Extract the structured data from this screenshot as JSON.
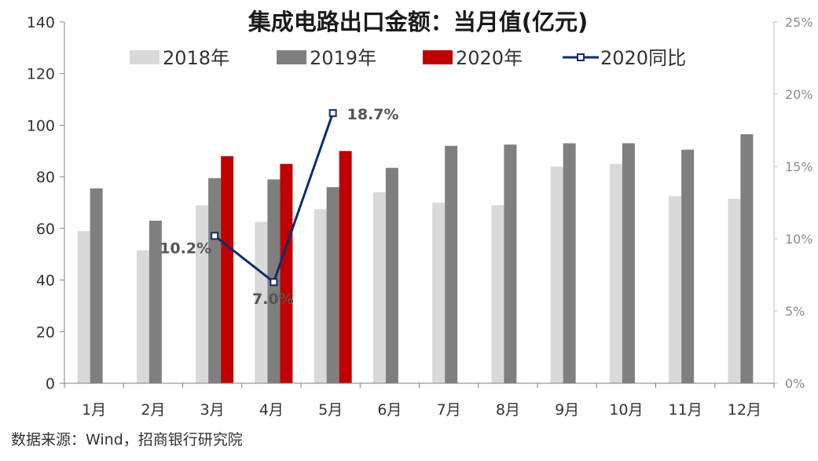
{
  "chart_data": {
    "type": "bar",
    "title": "集成电路出口金额：当月值(亿元)",
    "categories": [
      "1月",
      "2月",
      "3月",
      "4月",
      "5月",
      "6月",
      "7月",
      "8月",
      "9月",
      "10月",
      "11月",
      "12月"
    ],
    "series": [
      {
        "name": "2018年",
        "values": [
          59,
          51.5,
          69,
          62.5,
          67.5,
          74,
          70,
          69,
          84,
          85,
          72.5,
          71.5
        ],
        "color": "#d9d9d9"
      },
      {
        "name": "2019年",
        "values": [
          75.5,
          63,
          79.5,
          79,
          76,
          83.5,
          92,
          92.5,
          93,
          93,
          90.5,
          96.5
        ],
        "color": "#7f7f7f"
      },
      {
        "name": "2020年",
        "values": [
          null,
          null,
          88,
          85,
          90,
          null,
          null,
          null,
          null,
          null,
          null,
          null
        ],
        "color": "#c00000"
      }
    ],
    "line_series": {
      "name": "2020同比",
      "axis": "right",
      "values": [
        null,
        null,
        10.2,
        7.0,
        18.7,
        null,
        null,
        null,
        null,
        null,
        null,
        null
      ],
      "labels": [
        "",
        "",
        "10.2%",
        "7.0%",
        "18.7%",
        "",
        "",
        "",
        "",
        "",
        "",
        ""
      ],
      "color": "#0d2d6c"
    },
    "ylim": [
      0,
      140
    ],
    "yticks": [
      "0",
      "20",
      "40",
      "60",
      "80",
      "100",
      "120",
      "140"
    ],
    "y2lim": [
      0,
      25
    ],
    "y2ticks": [
      "0%",
      "5%",
      "10%",
      "15%",
      "20%",
      "25%"
    ],
    "legend_position": "top",
    "grid": false
  },
  "source": "数据来源：Wind，招商银行研究院"
}
